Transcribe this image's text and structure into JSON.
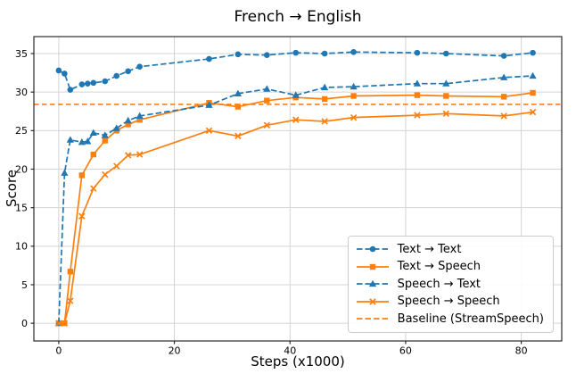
{
  "chart_data": {
    "type": "line",
    "title": "French → English",
    "xlabel": "Steps (x1000)",
    "ylabel": "Score",
    "xticks": [
      0,
      20,
      40,
      60,
      80
    ],
    "yticks": [
      0,
      5,
      10,
      15,
      20,
      25,
      30,
      35
    ],
    "xlim": [
      -4.3,
      87.0
    ],
    "ylim": [
      -2.3,
      37.2
    ],
    "grid": true,
    "legend_position": "lower right",
    "colors": {
      "blue": "#1f77b4",
      "orange": "#ff7f0e",
      "grid": "#d4d4d4",
      "spine": "#2b2b2b"
    },
    "series": [
      {
        "name": "Text → Text",
        "color": "#1f77b4",
        "line": "dashed",
        "marker": "circle",
        "x": [
          0,
          1,
          2,
          4,
          5,
          6,
          8,
          10,
          12,
          14,
          26,
          31,
          36,
          41,
          46,
          51,
          62,
          67,
          77,
          82
        ],
        "y": [
          32.8,
          32.4,
          30.3,
          31.0,
          31.1,
          31.2,
          31.4,
          32.1,
          32.7,
          33.3,
          34.3,
          34.9,
          34.8,
          35.1,
          35.0,
          35.2,
          35.1,
          35.0,
          34.7,
          35.1
        ]
      },
      {
        "name": "Text → Speech",
        "color": "#ff7f0e",
        "line": "solid",
        "marker": "square",
        "x": [
          0,
          1,
          2,
          4,
          6,
          8,
          10,
          12,
          14,
          26,
          31,
          36,
          41,
          46,
          51,
          62,
          67,
          77,
          82
        ],
        "y": [
          0,
          0,
          6.7,
          19.2,
          21.9,
          23.7,
          25.0,
          25.8,
          26.4,
          28.6,
          28.1,
          28.9,
          29.3,
          29.1,
          29.5,
          29.6,
          29.5,
          29.4,
          29.9
        ]
      },
      {
        "name": "Speech → Text",
        "color": "#1f77b4",
        "line": "dashed",
        "marker": "triangle",
        "x": [
          0,
          1,
          2,
          4,
          5,
          6,
          8,
          10,
          12,
          14,
          26,
          31,
          36,
          41,
          46,
          51,
          62,
          67,
          77,
          82
        ],
        "y": [
          0,
          19.5,
          23.8,
          23.5,
          23.6,
          24.7,
          24.4,
          25.3,
          26.3,
          26.9,
          28.3,
          29.8,
          30.4,
          29.6,
          30.6,
          30.7,
          31.1,
          31.1,
          31.9,
          32.1
        ]
      },
      {
        "name": "Speech → Speech",
        "color": "#ff7f0e",
        "line": "solid",
        "marker": "x",
        "x": [
          0,
          1,
          2,
          4,
          6,
          8,
          10,
          12,
          14,
          26,
          31,
          36,
          41,
          46,
          51,
          62,
          67,
          77,
          82
        ],
        "y": [
          0,
          0,
          2.9,
          13.9,
          17.5,
          19.3,
          20.4,
          21.8,
          21.9,
          25.0,
          24.3,
          25.7,
          26.4,
          26.2,
          26.7,
          27.0,
          27.2,
          26.9,
          27.4
        ]
      }
    ],
    "baseline": {
      "name": "Baseline (StreamSpeech)",
      "value": 28.4,
      "color": "#ff7f0e",
      "line": "dashed"
    }
  }
}
